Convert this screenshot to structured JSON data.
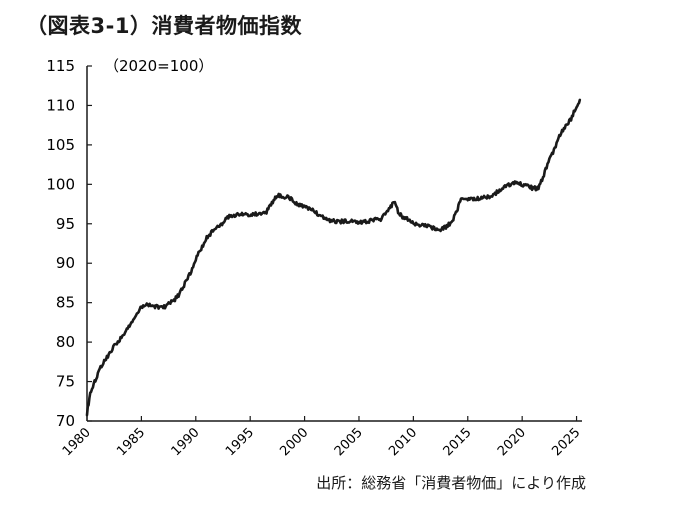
{
  "chart_data": {
    "type": "line",
    "title": "（図表3-1）消費者物価指数",
    "unit_label": "（2020=100）",
    "source": "出所：総務省「消費者物価」により作成",
    "xlabel": "",
    "ylabel": "",
    "xlim": [
      1980,
      2025.5
    ],
    "ylim": [
      70,
      115
    ],
    "yticks": [
      70,
      75,
      80,
      85,
      90,
      95,
      100,
      105,
      110,
      115
    ],
    "xticks": [
      1980,
      1985,
      1990,
      1995,
      2000,
      2005,
      2010,
      2015,
      2020,
      2025
    ],
    "grid": false,
    "series": [
      {
        "color": "#1a1a1a",
        "x": [
          1980,
          1980.3,
          1980.7,
          1981,
          1981.5,
          1982,
          1982.5,
          1983,
          1983.5,
          1984,
          1984.5,
          1985,
          1985.5,
          1986,
          1986.5,
          1987,
          1987.5,
          1988,
          1988.5,
          1989,
          1989.5,
          1990,
          1990.5,
          1991,
          1991.5,
          1992,
          1992.5,
          1993,
          1993.5,
          1994,
          1994.5,
          1995,
          1995.5,
          1996,
          1996.5,
          1997,
          1997.3,
          1997.7,
          1998,
          1998.5,
          1999,
          1999.5,
          2000,
          2000.5,
          2001,
          2001.5,
          2002,
          2002.5,
          2003,
          2003.5,
          2004,
          2004.5,
          2005,
          2005.5,
          2006,
          2006.5,
          2007,
          2007.5,
          2008,
          2008.3,
          2008.6,
          2009,
          2009.5,
          2010,
          2010.5,
          2011,
          2011.5,
          2012,
          2012.5,
          2013,
          2013.5,
          2014,
          2014.3,
          2014.6,
          2015,
          2015.5,
          2016,
          2016.5,
          2017,
          2017.5,
          2018,
          2018.5,
          2019,
          2019.5,
          2020,
          2020.5,
          2021,
          2021.5,
          2022,
          2022.5,
          2023,
          2023.5,
          2024,
          2024.5,
          2025,
          2025.3
        ],
        "y": [
          71,
          73.5,
          75,
          76,
          77.5,
          78.3,
          79.5,
          80.3,
          81.2,
          82.4,
          83.4,
          84.4,
          84.7,
          84.6,
          84.5,
          84.4,
          84.8,
          85.3,
          86.1,
          87.4,
          88.8,
          90.6,
          91.8,
          93.2,
          94,
          94.7,
          95.1,
          95.9,
          96.1,
          96.3,
          96.2,
          96.1,
          96.2,
          96.4,
          96.5,
          97.6,
          98.4,
          98.6,
          98.4,
          98.5,
          97.8,
          97.3,
          97.2,
          96.8,
          96.5,
          95.9,
          95.6,
          95.4,
          95.3,
          95.3,
          95.4,
          95.2,
          95.1,
          95.2,
          95.4,
          95.5,
          95.6,
          96.3,
          97.3,
          97.8,
          96.5,
          95.9,
          95.6,
          95.1,
          94.9,
          94.8,
          94.6,
          94.4,
          94.3,
          94.6,
          95.2,
          96.5,
          97.9,
          98.2,
          98.1,
          98.2,
          98.2,
          98.3,
          98.4,
          98.8,
          99.4,
          99.8,
          100.1,
          100.2,
          100,
          99.8,
          99.5,
          99.5,
          101.2,
          103.1,
          104.6,
          106.3,
          107.4,
          108.2,
          110.0,
          110.7
        ]
      }
    ]
  }
}
